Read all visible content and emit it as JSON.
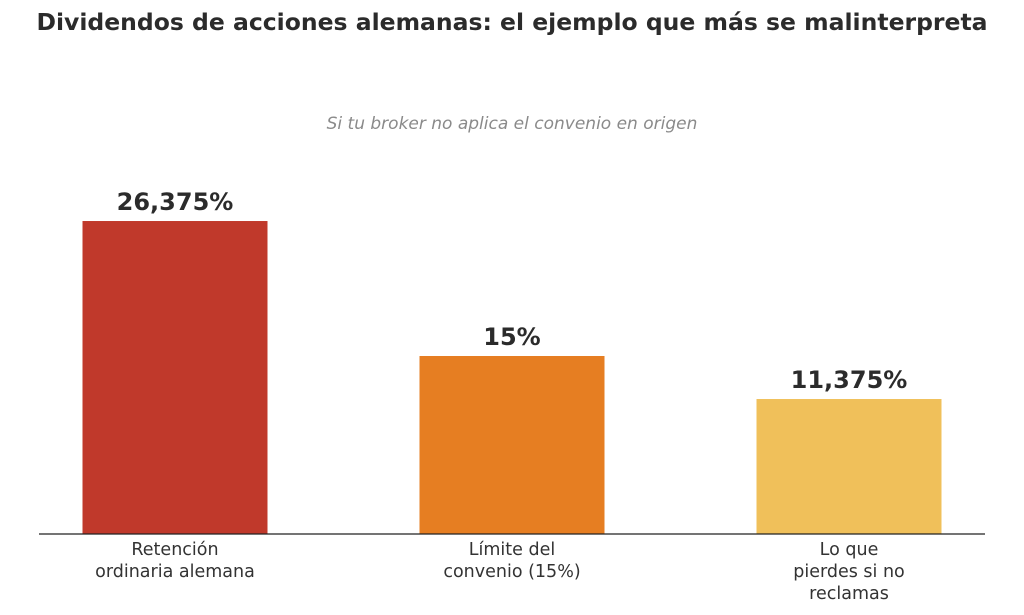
{
  "chart_data": {
    "type": "bar",
    "title": "Dividendos de acciones alemanas: el ejemplo que más se malinterpreta",
    "subtitle": "Si tu broker no aplica el convenio en origen",
    "categories": [
      [
        "Retención",
        "ordinaria alemana"
      ],
      [
        "Límite del",
        "convenio (15%)"
      ],
      [
        "Lo que",
        "pierdes si no",
        "reclamas"
      ]
    ],
    "values": [
      26.375,
      15,
      11.375
    ],
    "value_labels": [
      "26,375%",
      "15%",
      "11,375%"
    ],
    "colors": [
      "#c0392b",
      "#e67e22",
      "#f0c05a"
    ],
    "xlabel": "",
    "ylabel": "",
    "ylim": [
      0,
      30
    ],
    "grid": false,
    "legend": "none"
  }
}
